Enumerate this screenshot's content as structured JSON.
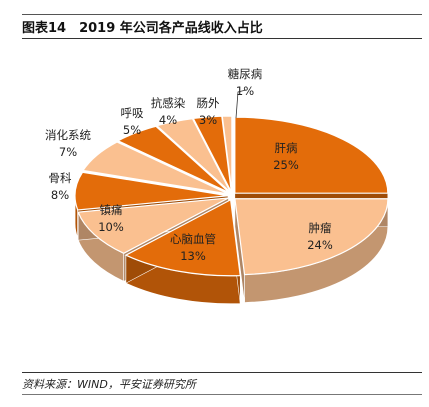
{
  "figure": {
    "title": "图表14　2019 年公司各产品线收入占比",
    "source": "资料来源：WIND，平安证券研究所"
  },
  "chart_data": {
    "type": "pie",
    "title": "图表14　2019 年公司各产品线收入占比",
    "categories": [
      "肝病",
      "肿瘤",
      "心脑血管",
      "镇痛",
      "骨科",
      "消化系统",
      "呼吸",
      "抗感染",
      "肠外",
      "糖尿病"
    ],
    "values": [
      25,
      24,
      13,
      10,
      8,
      7,
      5,
      4,
      3,
      1
    ],
    "value_labels": [
      "25%",
      "24%",
      "13%",
      "10%",
      "8%",
      "7%",
      "5%",
      "4%",
      "3%",
      "1%"
    ],
    "colors": [
      "#E36C0A",
      "#FAC090",
      "#E36C0A",
      "#FAC090",
      "#E36C0A",
      "#FAC090",
      "#E36C0A",
      "#FAC090",
      "#E36C0A",
      "#FAC090"
    ],
    "style": "3d-pie",
    "legend": "none"
  }
}
